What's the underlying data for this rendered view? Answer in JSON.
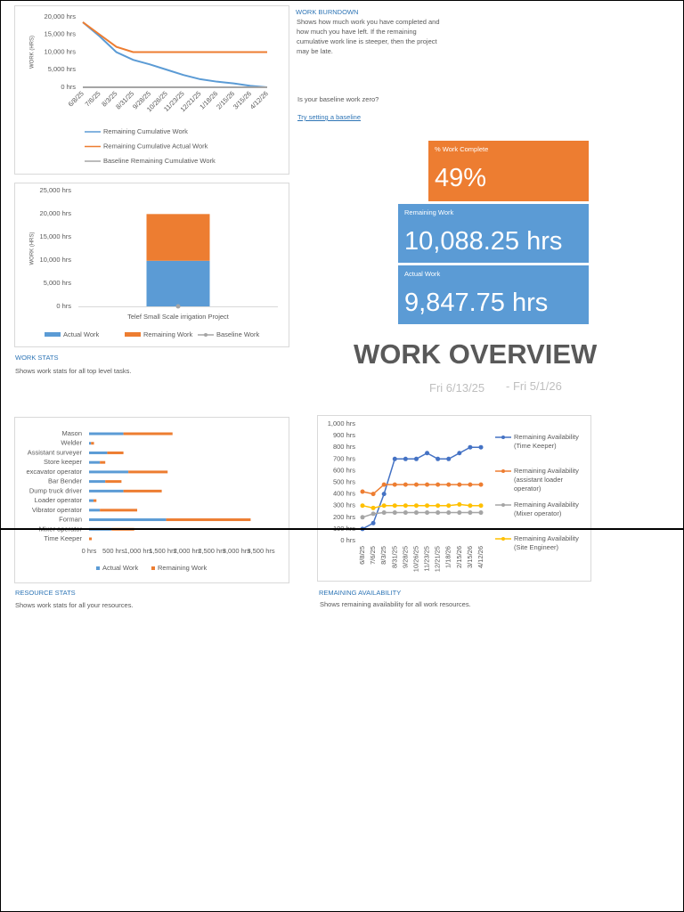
{
  "chart_data": [
    {
      "type": "line",
      "y_label": "WORK (HRS)",
      "categories": [
        "6/8/25",
        "7/6/25",
        "8/3/25",
        "8/31/25",
        "9/28/25",
        "10/26/25",
        "11/23/25",
        "12/21/25",
        "1/18/26",
        "2/15/26",
        "3/15/26",
        "4/12/26"
      ],
      "series": [
        {
          "name": "Remaining Cumulative Work",
          "color": "#5b9bd5",
          "values": [
            18500,
            14500,
            10000,
            7800,
            6500,
            5000,
            3500,
            2300,
            1600,
            1100,
            400,
            0
          ]
        },
        {
          "name": "Remaining Cumulative Actual Work",
          "color": "#ed7d31",
          "values": [
            18500,
            15000,
            11500,
            10000,
            10000,
            10000,
            10000,
            10000,
            10000,
            10000,
            10000,
            10000
          ]
        },
        {
          "name": "Baseline Remaining Cumulative Work",
          "color": "#a5a5a5",
          "values": [
            0,
            0,
            0,
            0,
            0,
            0,
            0,
            0,
            0,
            0,
            0,
            0
          ]
        }
      ],
      "ylim": [
        0,
        20000
      ],
      "yticks": [
        {
          "value": 0,
          "label": "0 hrs"
        },
        {
          "value": 5000,
          "label": "5,000 hrs"
        },
        {
          "value": 10000,
          "label": "10,000 hrs"
        },
        {
          "value": 15000,
          "label": "15,000 hrs"
        },
        {
          "value": 20000,
          "label": "20,000 hrs"
        }
      ]
    },
    {
      "type": "stacked-bar",
      "y_label": "WORK (HRS)",
      "categories": [
        "Telef Small Scale irrigation Project"
      ],
      "series": [
        {
          "name": "Actual Work",
          "color": "#5b9bd5",
          "values": [
            9847.75
          ]
        },
        {
          "name": "Remaining Work",
          "color": "#ed7d31",
          "values": [
            10088.25
          ]
        },
        {
          "name": "Baseline Work",
          "color": "#a5a5a5",
          "values": [
            0
          ]
        }
      ],
      "ylim": [
        0,
        25000
      ],
      "yticks": [
        {
          "value": 0,
          "label": "0 hrs"
        },
        {
          "value": 5000,
          "label": "5,000 hrs"
        },
        {
          "value": 10000,
          "label": "10,000 hrs"
        },
        {
          "value": 15000,
          "label": "15,000 hrs"
        },
        {
          "value": 20000,
          "label": "20,000 hrs"
        },
        {
          "value": 25000,
          "label": "25,000 hrs"
        }
      ]
    },
    {
      "type": "hbar",
      "categories": [
        "Mason",
        "Welder",
        "Assistant surveyer",
        "Store keeper",
        "excavator operator",
        "Bar Bender",
        "Dump truck driver",
        "Loader operator",
        "Vibrator operator",
        "Forman",
        "Mixer operator",
        "Time Keeper"
      ],
      "series": [
        {
          "name": "Actual Work",
          "color": "#5b9bd5",
          "values": [
            700,
            40,
            370,
            220,
            800,
            330,
            700,
            90,
            220,
            1570,
            460,
            0
          ]
        },
        {
          "name": "Remaining Work",
          "color": "#ed7d31",
          "values": [
            1000,
            60,
            330,
            110,
            800,
            330,
            780,
            60,
            760,
            1720,
            460,
            55
          ]
        }
      ],
      "xlim": [
        0,
        3500
      ],
      "xticks": [
        {
          "value": 0,
          "label": "0 hrs"
        },
        {
          "value": 500,
          "label": "500 hrs"
        },
        {
          "value": 1000,
          "label": "1,000 hrs"
        },
        {
          "value": 1500,
          "label": "1,500 hrs"
        },
        {
          "value": 2000,
          "label": "2,000 hrs"
        },
        {
          "value": 2500,
          "label": "2,500 hrs"
        },
        {
          "value": 3000,
          "label": "3,000 hrs"
        },
        {
          "value": 3500,
          "label": "3,500 hrs"
        }
      ]
    },
    {
      "type": "line-markers",
      "categories": [
        "6/8/25",
        "7/6/25",
        "8/3/25",
        "8/31/25",
        "9/28/25",
        "10/26/25",
        "11/23/25",
        "12/21/25",
        "1/18/26",
        "2/15/26",
        "3/15/26",
        "4/12/26"
      ],
      "series": [
        {
          "name": "Remaining Availability (Time Keeper)",
          "color": "#4472c4",
          "values": [
            100,
            150,
            400,
            700,
            700,
            700,
            750,
            700,
            700,
            750,
            800,
            800
          ]
        },
        {
          "name": "Remaining Availability (assistant loader operator)",
          "color": "#ed7d31",
          "values": [
            420,
            400,
            480,
            480,
            480,
            480,
            480,
            480,
            480,
            480,
            480,
            480
          ]
        },
        {
          "name": "Remaining Availability (Mixer operator)",
          "color": "#a5a5a5",
          "values": [
            200,
            230,
            240,
            240,
            240,
            240,
            240,
            240,
            240,
            240,
            240,
            240
          ]
        },
        {
          "name": "Remaining Availability (Site Engineer)",
          "color": "#ffc000",
          "values": [
            300,
            280,
            300,
            300,
            300,
            300,
            300,
            300,
            300,
            310,
            300,
            300
          ]
        }
      ],
      "ylim": [
        0,
        1000
      ],
      "yticks": [
        {
          "value": 0,
          "label": "0 hrs"
        },
        {
          "value": 100,
          "label": "100 hrs"
        },
        {
          "value": 200,
          "label": "200 hrs"
        },
        {
          "value": 300,
          "label": "300 hrs"
        },
        {
          "value": 400,
          "label": "400 hrs"
        },
        {
          "value": 500,
          "label": "500 hrs"
        },
        {
          "value": 600,
          "label": "600 hrs"
        },
        {
          "value": 700,
          "label": "700 hrs"
        },
        {
          "value": 800,
          "label": "800 hrs"
        },
        {
          "value": 900,
          "label": "900 hrs"
        },
        {
          "value": 1000,
          "label": "1,000 hrs"
        }
      ]
    }
  ],
  "report": {
    "burndown_heading": "WORK BURNDOWN",
    "burndown_text": "Shows how much work you have completed and how much you have left. If the remaining cumulative work line is steeper, then the project may be late.",
    "baseline_question": "Is your baseline work zero?",
    "baseline_link": "Try setting a baseline",
    "cards": [
      {
        "label": "% Work Complete",
        "value": "49%"
      },
      {
        "label": "Remaining Work",
        "value": "10,088.25 hrs"
      },
      {
        "label": "Actual Work",
        "value": "9,847.75 hrs"
      }
    ],
    "title": "WORK OVERVIEW",
    "start": "Fri 6/13/25",
    "finish": "- Fri 5/1/26",
    "work_stats_heading": "WORK STATS",
    "work_stats_text": "Shows work stats for all top level tasks.",
    "resource_stats_heading": "RESOURCE STATS",
    "resource_stats_text": "Shows work stats for all your resources.",
    "availability_heading": "REMAINING AVAILABILITY",
    "availability_text": "Shows remaining availability for all work resources."
  }
}
